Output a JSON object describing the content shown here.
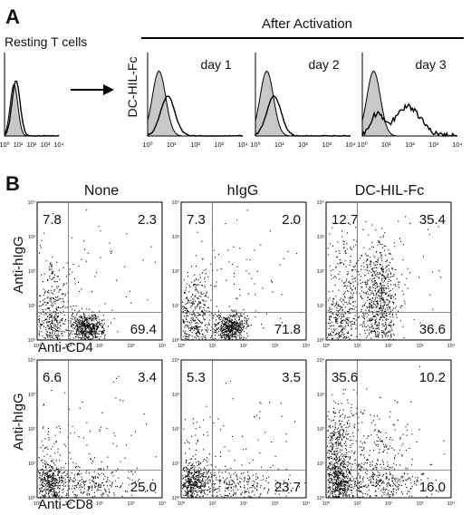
{
  "panel_a": {
    "letter": "A",
    "resting_label": "Resting T cells",
    "after_label": "After Activation",
    "ylabel": "DC-HIL-Fc",
    "day_labels": [
      "day 1",
      "day 2",
      "day 3"
    ],
    "tick_labels": [
      "10⁰",
      "10¹",
      "10²",
      "10³",
      "10⁴"
    ]
  },
  "panel_b": {
    "letter": "B",
    "col_titles": [
      "None",
      "hIgG",
      "DC-HIL-Fc"
    ],
    "ylabel": "Anti-hIgG",
    "row_xlabels": [
      "Anti-CD4",
      "Anti-CD8"
    ],
    "tick_labels": [
      "10⁰",
      "10¹",
      "10²",
      "10³",
      "10⁴"
    ],
    "quadrants": [
      [
        {
          "ul": "7.8",
          "ur": "2.3",
          "lr": "69.4"
        },
        {
          "ul": "7.3",
          "ur": "2.0",
          "lr": "71.8"
        },
        {
          "ul": "12.7",
          "ur": "35.4",
          "lr": "36.6"
        }
      ],
      [
        {
          "ul": "6.6",
          "ur": "3.4",
          "lr": "25.0"
        },
        {
          "ul": "5.3",
          "ur": "3.5",
          "lr": "23.7"
        },
        {
          "ul": "35.6",
          "ur": "10.2",
          "lr": "16.0"
        }
      ]
    ]
  },
  "chart_data": [
    {
      "type": "area",
      "panel": "A",
      "xscale": "log",
      "xlim": [
        1,
        10000
      ],
      "plots": [
        {
          "label": "Resting T cells",
          "shaded_peak": 5,
          "open_peak": 7
        },
        {
          "label": "day 1",
          "shaded_peak": 3,
          "open_peak": 7
        },
        {
          "label": "day 2",
          "shaded_peak": 3,
          "open_peak": 6
        },
        {
          "label": "day 3",
          "shaded_peak": 3,
          "open_peak": 80
        }
      ]
    },
    {
      "type": "scatter",
      "panel": "B",
      "xscale": "log",
      "yscale": "log",
      "xlim": [
        1,
        10000
      ],
      "ylim": [
        1,
        10000
      ],
      "quadrant_percentages": [
        [
          [
            7.8,
            2.3,
            69.4
          ],
          [
            7.3,
            2.0,
            71.8
          ],
          [
            12.7,
            35.4,
            36.6
          ]
        ],
        [
          [
            6.6,
            3.4,
            25.0
          ],
          [
            5.3,
            3.5,
            23.7
          ],
          [
            35.6,
            10.2,
            16.0
          ]
        ]
      ]
    }
  ]
}
